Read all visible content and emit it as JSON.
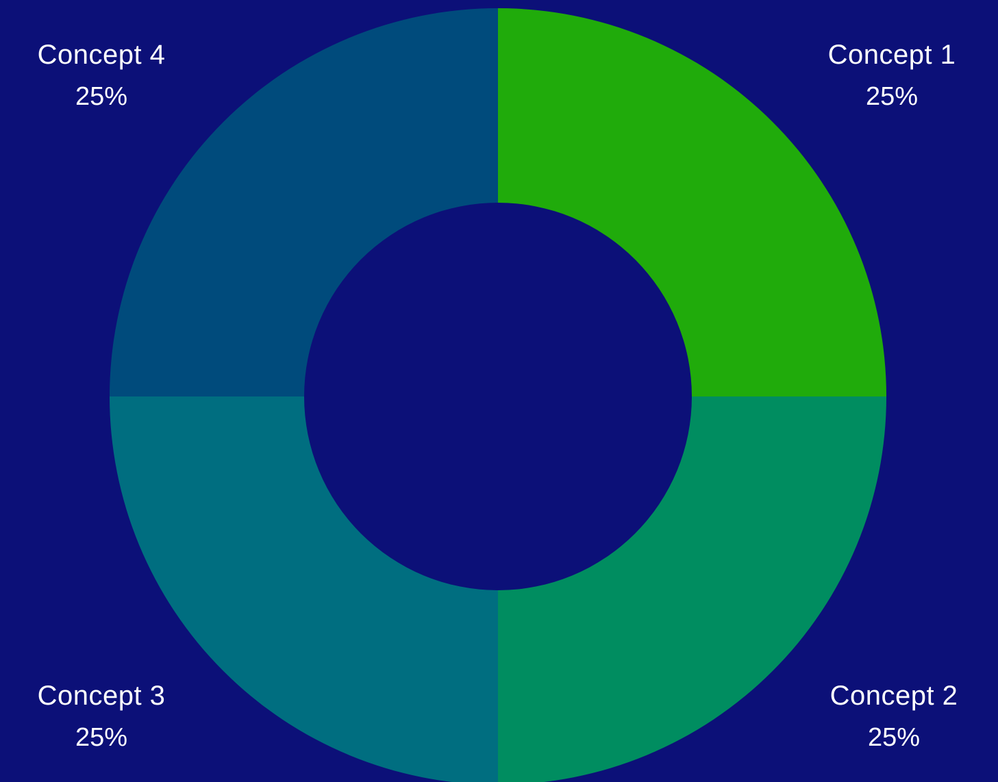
{
  "chart_data": {
    "type": "pie",
    "variant": "donut",
    "title": "",
    "slices": [
      {
        "label": "Concept 1",
        "value": 25,
        "value_label": "25%",
        "color": "#20ab0b"
      },
      {
        "label": "Concept 2",
        "value": 25,
        "value_label": "25%",
        "color": "#008d60"
      },
      {
        "label": "Concept 3",
        "value": 25,
        "value_label": "25%",
        "color": "#006e80"
      },
      {
        "label": "Concept 4",
        "value": 25,
        "value_label": "25%",
        "color": "#004b7c"
      }
    ],
    "start_angle": "12 o'clock",
    "direction": "clockwise",
    "legend": "none",
    "label_placement": "outside corners"
  },
  "colors": {
    "background": "#0c1078",
    "label_text": "#ffffff"
  }
}
